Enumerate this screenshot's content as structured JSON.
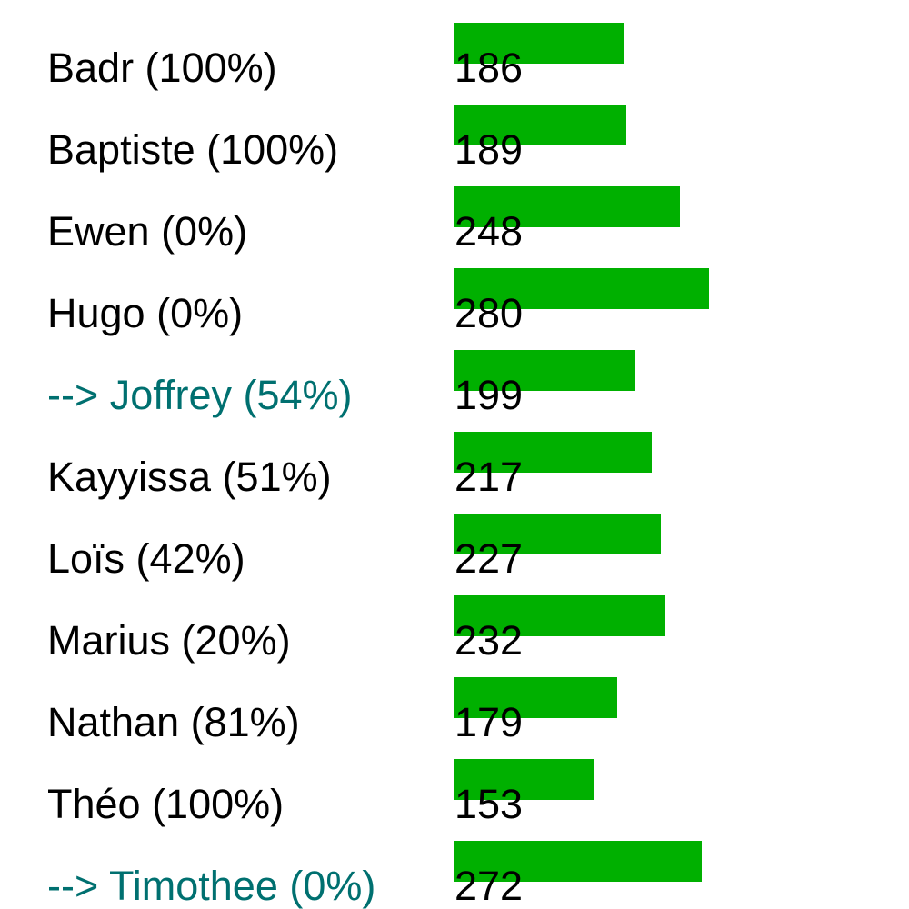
{
  "colors": {
    "bar": "#00b000",
    "text": "#000000",
    "highlight_text": "#007070",
    "background": "#ffffff"
  },
  "chart_data": {
    "type": "bar",
    "orientation": "horizontal",
    "grid": false,
    "legend": "none",
    "categories": [
      "Badr (100%)",
      "Baptiste (100%)",
      "Ewen (0%)",
      "Hugo (0%)",
      "--> Joffrey (54%)",
      "Kayyissa (51%)",
      "Loïs (42%)",
      "Marius (20%)",
      "Nathan (81%)",
      "Théo (100%)",
      "--> Timothee (0%)"
    ],
    "values": [
      186,
      189,
      248,
      280,
      199,
      217,
      227,
      232,
      179,
      153,
      272
    ],
    "highlighted": [
      false,
      false,
      false,
      false,
      true,
      false,
      false,
      false,
      false,
      false,
      true
    ],
    "xlim": [
      0,
      280
    ]
  }
}
